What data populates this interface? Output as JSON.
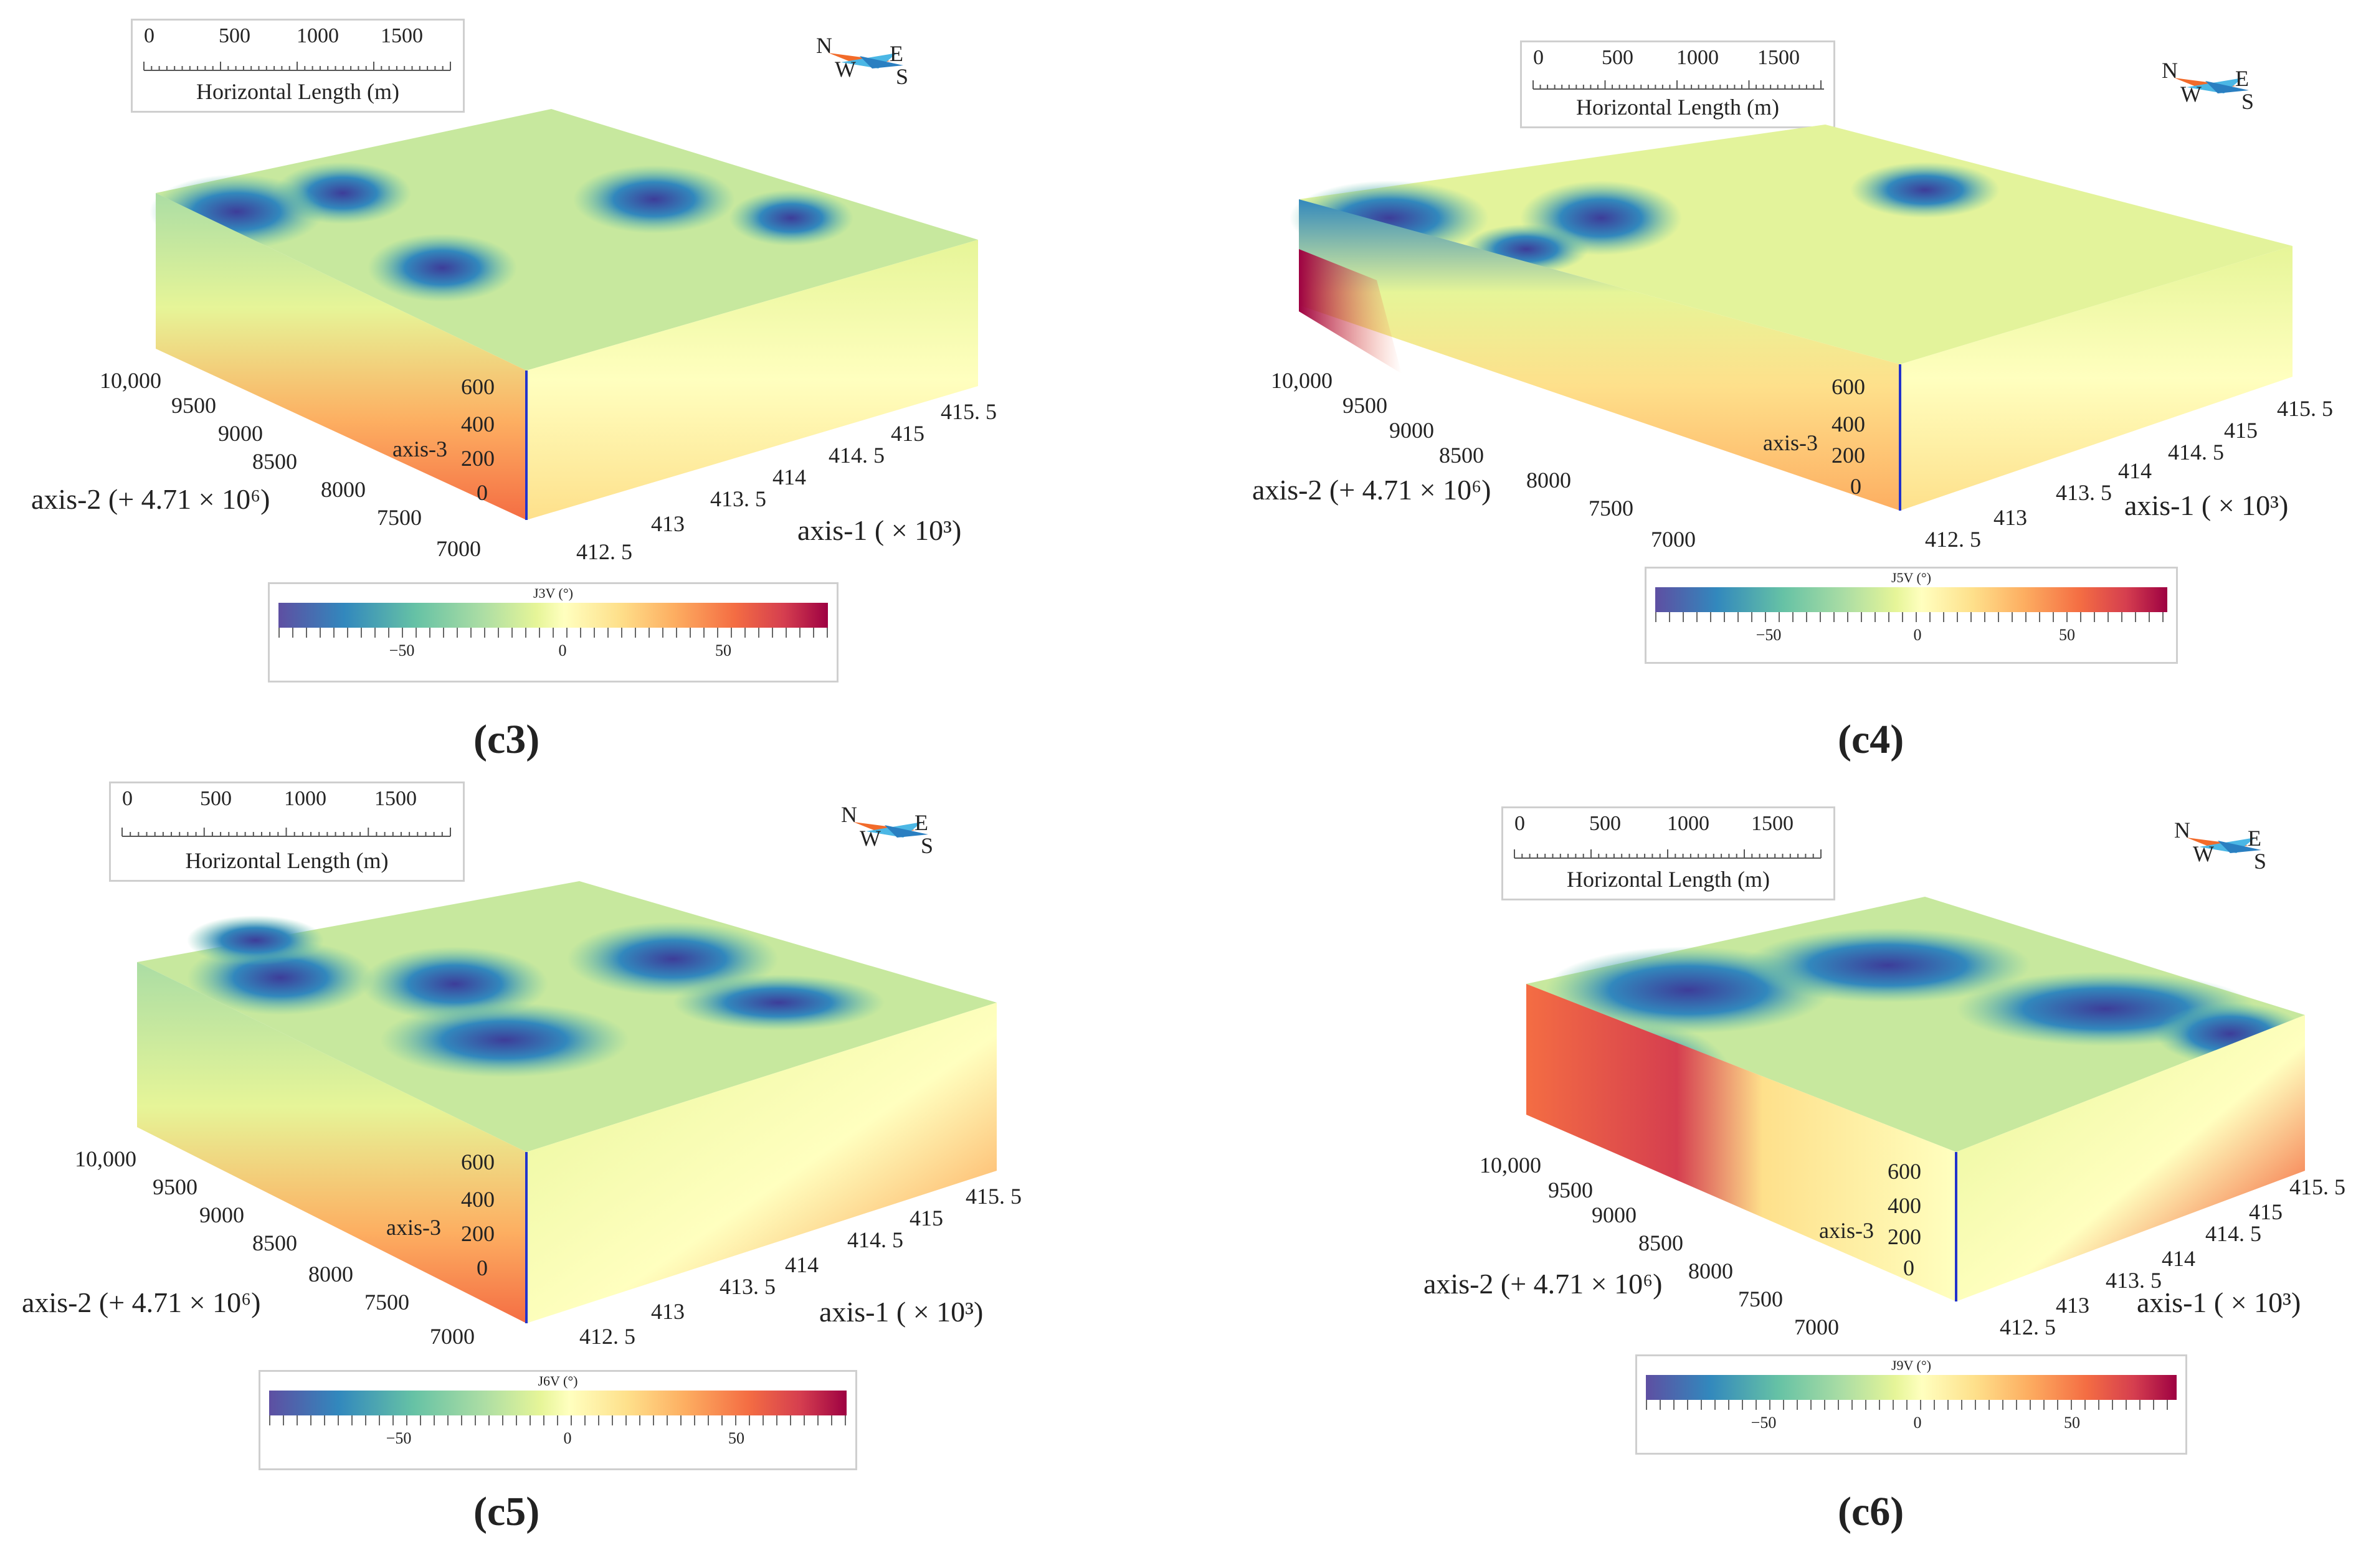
{
  "scale_bar": {
    "ticks": [
      "0",
      "500",
      "1000",
      "1500"
    ],
    "label": "Horizontal Length (m)"
  },
  "compass": {
    "n": "N",
    "w": "W",
    "e": "E",
    "s": "S"
  },
  "axes": {
    "axis1_label": "axis-1 ( × 10³)",
    "axis2_label": "axis-2 (+ 4.71 × 10⁶)",
    "axis3_label": "axis-3",
    "axis1_ticks": [
      "412. 5",
      "413",
      "413. 5",
      "414",
      "414. 5",
      "415",
      "415. 5"
    ],
    "axis2_ticks": [
      "10,000",
      "9500",
      "9000",
      "8500",
      "8000",
      "7500",
      "7000"
    ],
    "axis3_ticks": [
      "600",
      "400",
      "200",
      "0"
    ]
  },
  "colorbar": {
    "ticks": [
      "−50",
      "0",
      "50"
    ]
  },
  "panels": [
    {
      "caption": "(c3)",
      "cb_title": "J3V (°)"
    },
    {
      "caption": "(c4)",
      "cb_title": "J5V (°)"
    },
    {
      "caption": "(c5)",
      "cb_title": "J6V (°)"
    },
    {
      "caption": "(c6)",
      "cb_title": "J9V (°)"
    }
  ],
  "colors": {
    "scale": [
      "#5e4fa2",
      "#3288bd",
      "#66c2a5",
      "#abdda4",
      "#e6f598",
      "#ffffbf",
      "#fee08b",
      "#fdae61",
      "#f46d43",
      "#d53e4f",
      "#9e0142"
    ],
    "z_axis": "#2233cc"
  }
}
